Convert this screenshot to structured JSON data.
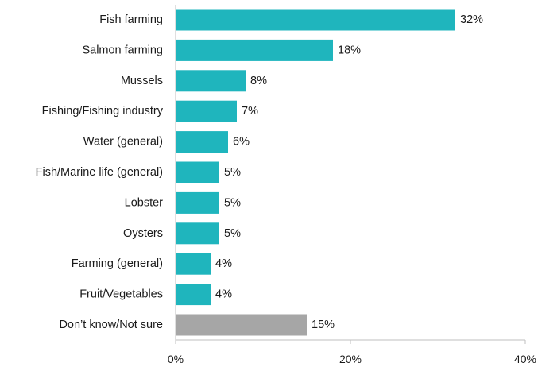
{
  "chart_data": {
    "type": "bar",
    "orientation": "horizontal",
    "categories": [
      "Fish farming",
      "Salmon farming",
      "Mussels",
      "Fishing/Fishing industry",
      "Water (general)",
      "Fish/Marine life (general)",
      "Lobster",
      "Oysters",
      "Farming (general)",
      "Fruit/Vegetables",
      "Don’t know/Not sure"
    ],
    "values": [
      32,
      18,
      8,
      7,
      6,
      5,
      5,
      5,
      4,
      4,
      15
    ],
    "value_labels": [
      "32%",
      "18%",
      "8%",
      "7%",
      "6%",
      "5%",
      "5%",
      "5%",
      "4%",
      "4%",
      "15%"
    ],
    "bar_colors": [
      "#1fb5bd",
      "#1fb5bd",
      "#1fb5bd",
      "#1fb5bd",
      "#1fb5bd",
      "#1fb5bd",
      "#1fb5bd",
      "#1fb5bd",
      "#1fb5bd",
      "#1fb5bd",
      "#a6a6a6"
    ],
    "xlim": [
      0,
      40
    ],
    "x_ticks": [
      0,
      20,
      40
    ],
    "x_tick_labels": [
      "0%",
      "20%",
      "40%"
    ],
    "grid": false,
    "legend": "none",
    "title": "",
    "xlabel": "",
    "ylabel": ""
  }
}
